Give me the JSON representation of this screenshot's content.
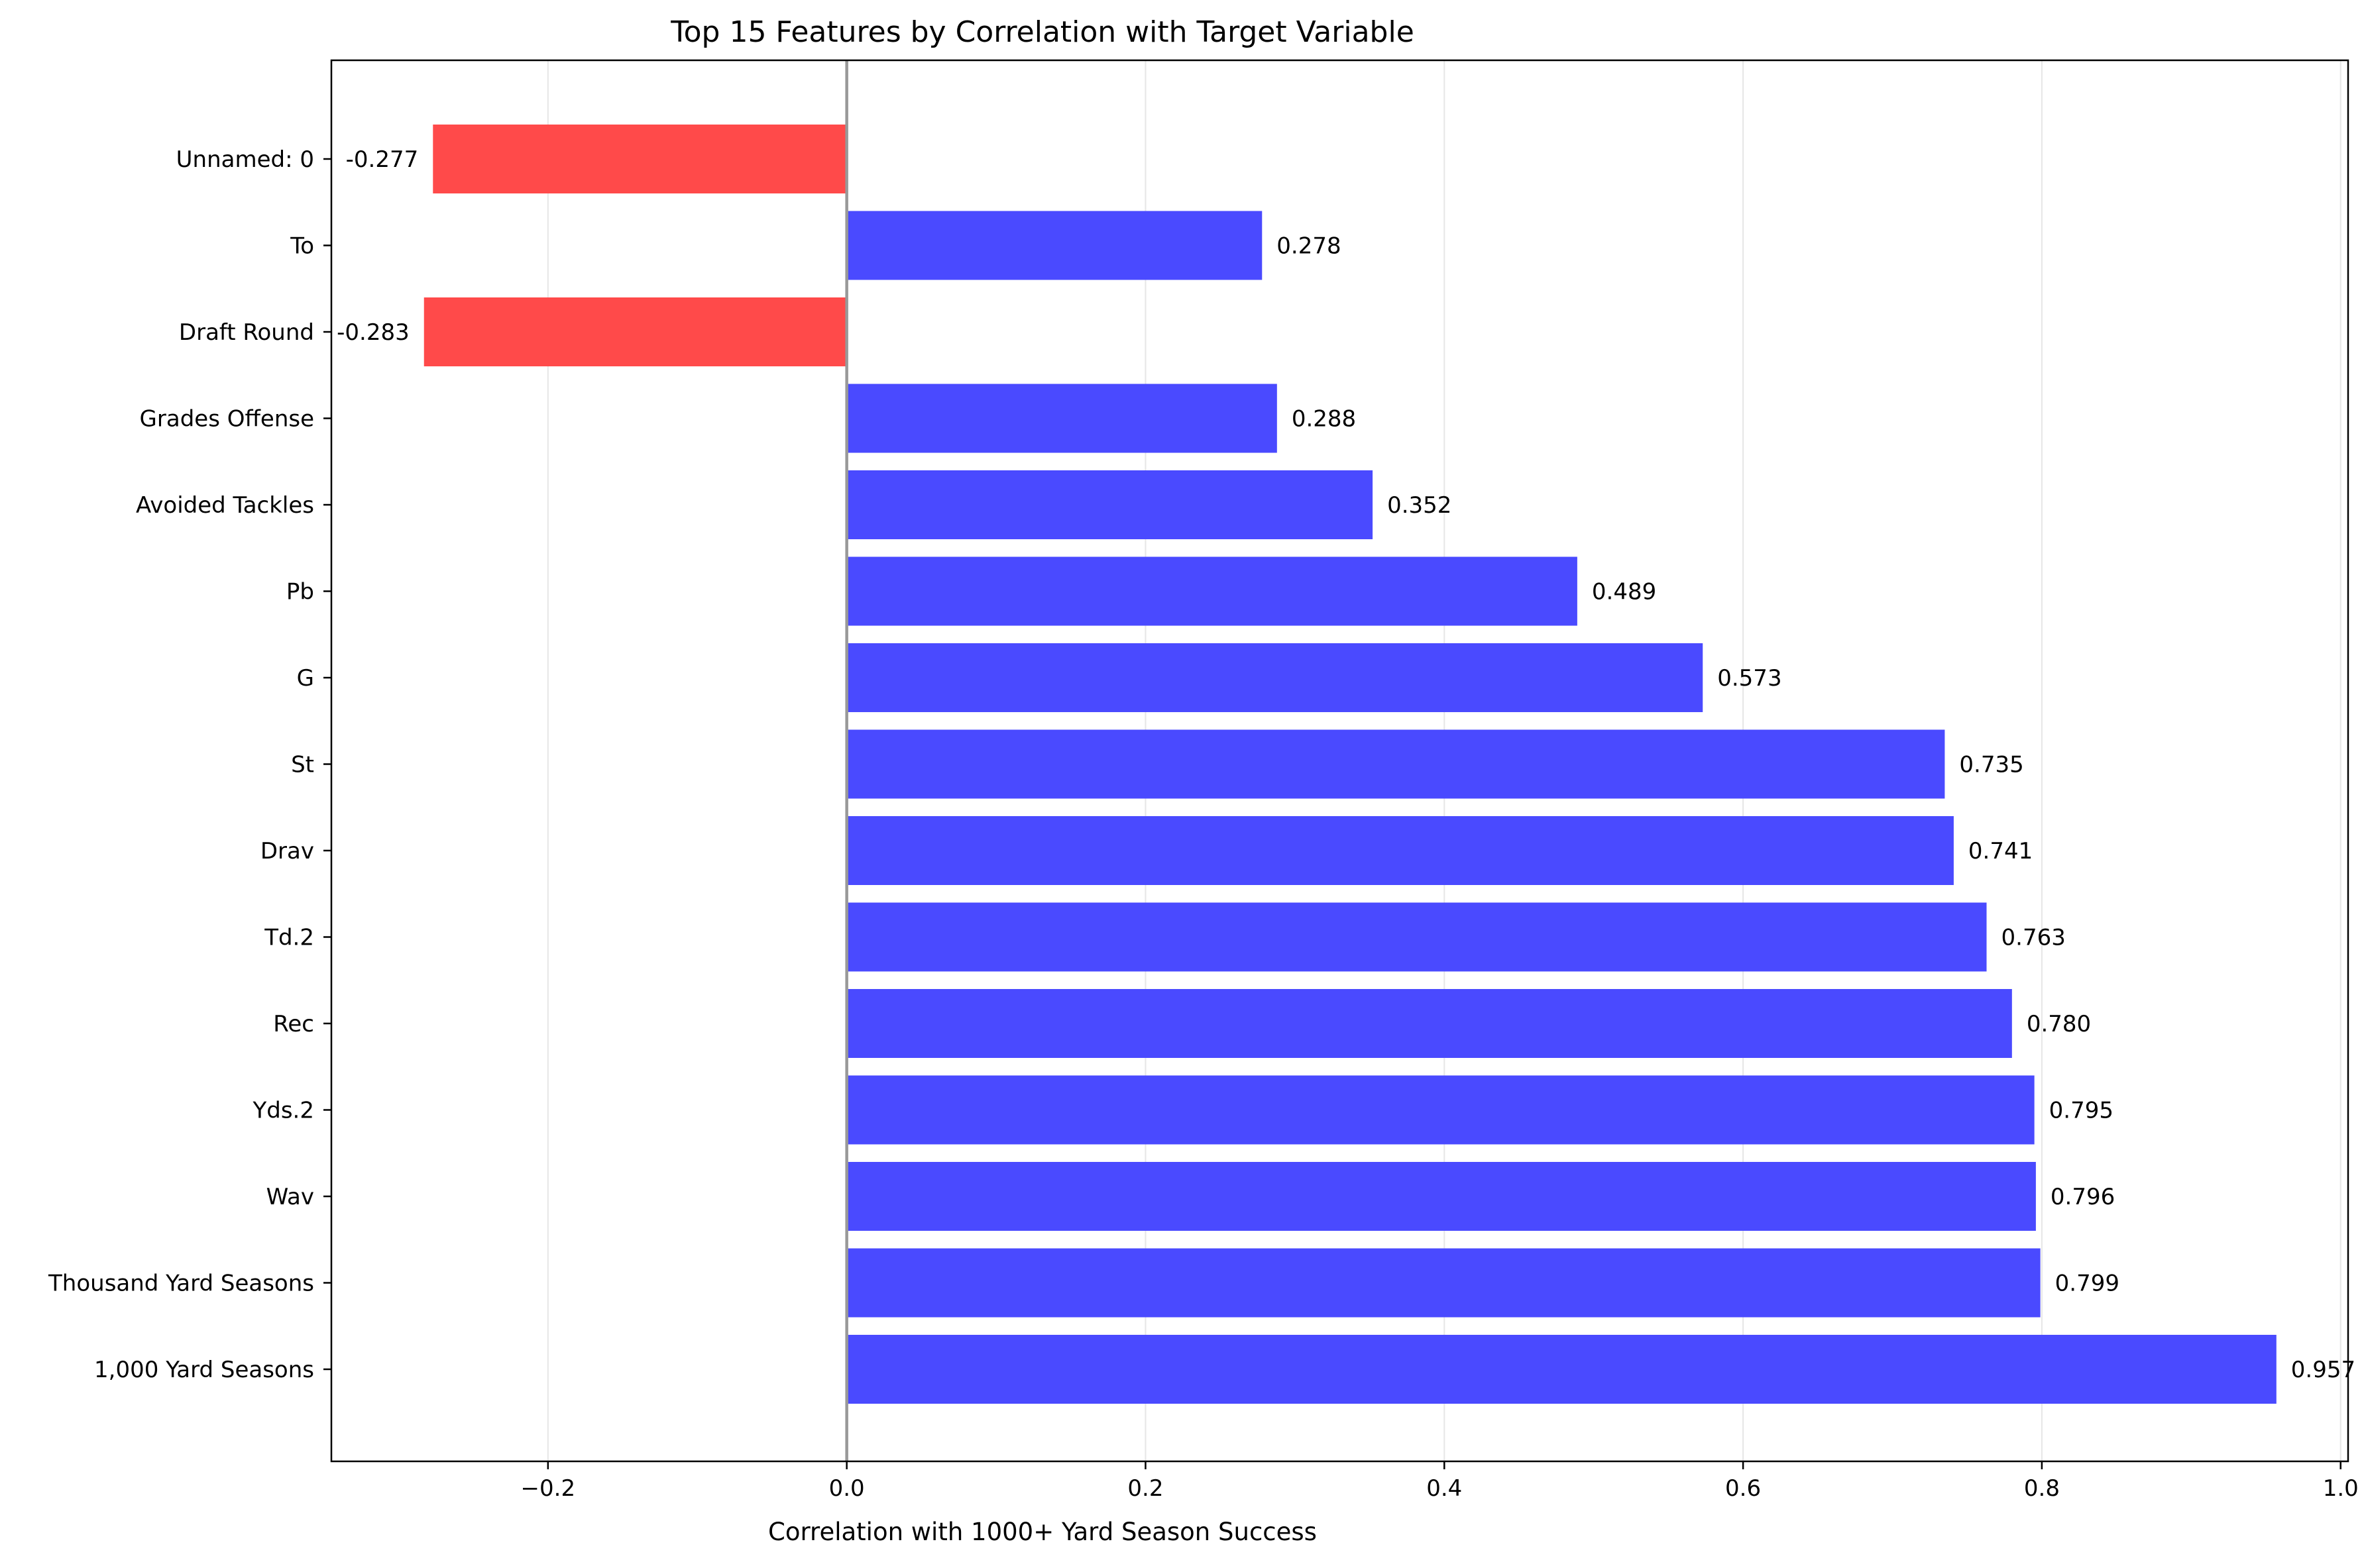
{
  "chart_data": {
    "type": "bar",
    "orientation": "horizontal",
    "title": "Top 15 Features by Correlation with Target Variable",
    "xlabel": "Correlation with 1000+ Yard Season Success",
    "ylabel": "",
    "xlim": [
      -0.345,
      1.005
    ],
    "xticks": [
      -0.2,
      0.0,
      0.2,
      0.4,
      0.6,
      0.8,
      1.0
    ],
    "xtick_labels": [
      "−0.2",
      "0.0",
      "0.2",
      "0.4",
      "0.6",
      "0.8",
      "1.0"
    ],
    "grid": "vertical",
    "categories": [
      "Unnamed: 0",
      "To",
      "Draft Round",
      "Grades Offense",
      "Avoided Tackles",
      "Pb",
      "G",
      "St",
      "Drav",
      "Td.2",
      "Rec",
      "Yds.2",
      "Wav",
      "Thousand Yard Seasons",
      "1,000 Yard Seasons"
    ],
    "values": [
      -0.277,
      0.278,
      -0.283,
      0.288,
      0.352,
      0.489,
      0.573,
      0.735,
      0.741,
      0.763,
      0.78,
      0.795,
      0.796,
      0.799,
      0.957
    ],
    "value_labels": [
      "-0.277",
      "0.278",
      "-0.283",
      "0.288",
      "0.352",
      "0.489",
      "0.573",
      "0.735",
      "0.741",
      "0.763",
      "0.780",
      "0.795",
      "0.796",
      "0.799",
      "0.957"
    ],
    "colors": {
      "positive": "#4a4aff",
      "negative": "#ff4a4a",
      "zero_line": "#999999",
      "grid": "#e6e6e6"
    }
  }
}
